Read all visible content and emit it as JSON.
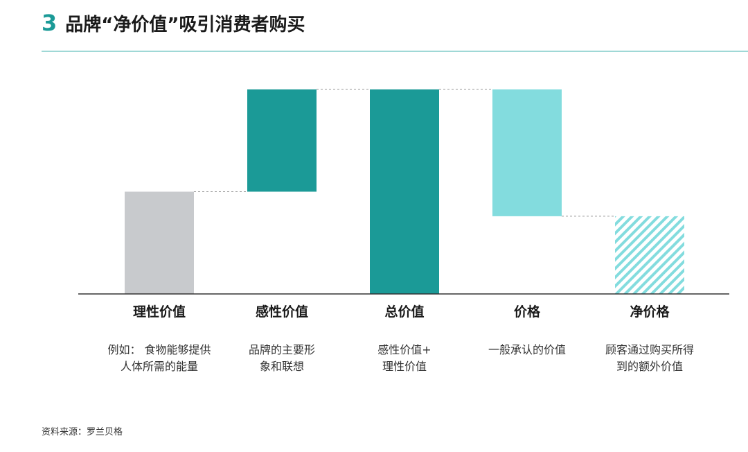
{
  "header": {
    "number": "3",
    "title": "品牌“净价值”吸引消费者购买"
  },
  "colors": {
    "accent": "#1b9a97",
    "rule": "#9fd8d6",
    "rational": "#c8cacd",
    "emotional": "#1b9a97",
    "total": "#1b9a97",
    "price": "#83dcde",
    "net_hatch": "#83dcde",
    "axis": "#333333",
    "connector": "#999999"
  },
  "chart_data": {
    "type": "bar",
    "subtype": "waterfall",
    "ylim": [
      0,
      100
    ],
    "categories": [
      "理性价值",
      "感性价值",
      "总价值",
      "价格",
      "净价格"
    ],
    "bars": [
      {
        "label": "理性价值",
        "start": 0,
        "end": 50,
        "kind": "increase",
        "style": "rational"
      },
      {
        "label": "感性价值",
        "start": 50,
        "end": 100,
        "kind": "increase",
        "style": "emotional"
      },
      {
        "label": "总价值",
        "start": 0,
        "end": 100,
        "kind": "total",
        "style": "total"
      },
      {
        "label": "价格",
        "start": 38,
        "end": 100,
        "kind": "decrease",
        "style": "price"
      },
      {
        "label": "净价格",
        "start": 0,
        "end": 38,
        "kind": "result",
        "style": "net_hatch"
      }
    ],
    "descriptions": [
      "例如： 食物能够提供\n人体所需的能量",
      "品牌的主要形\n象和联想",
      "感性价值+\n理性价值",
      "一般承认的价值",
      "顾客通过购买所得\n到的额外价值"
    ]
  },
  "source": "资料来源：罗兰贝格"
}
